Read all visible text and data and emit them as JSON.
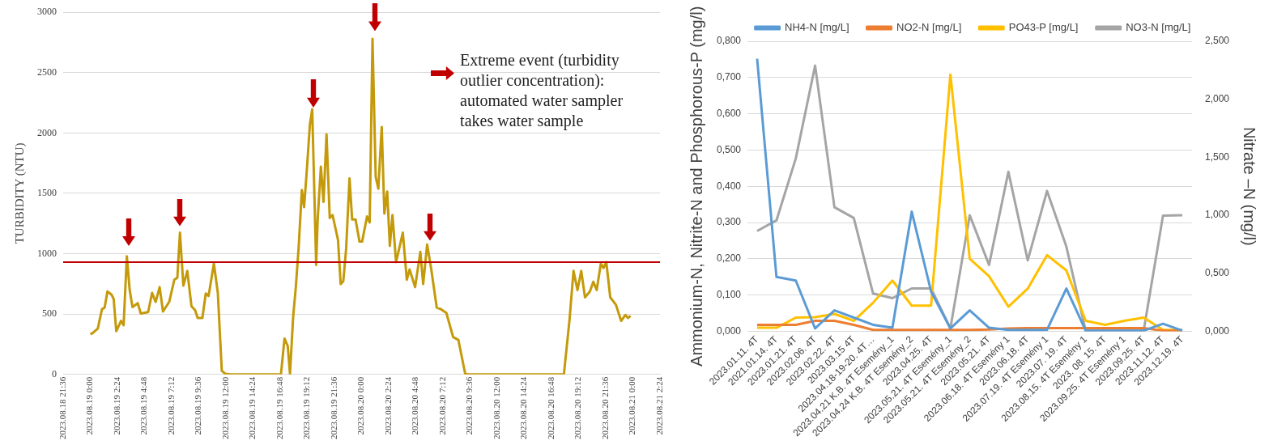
{
  "chart_data": [
    {
      "type": "line",
      "ylabel": "TURBIDITY (NTU)",
      "annotations": [
        "Extreme event (turbidity outlier concentration): automated water sampler takes water sample"
      ],
      "xlim": [
        "2023-08-18T21:36",
        "2023-08-21T02:24"
      ],
      "xticks": [
        {
          "value": "2023-08-18T21:36",
          "label": "2023.08.18 21:36"
        },
        {
          "value": "2023-08-19T00:00",
          "label": "2023.08.19 0:00"
        },
        {
          "value": "2023-08-19T02:24",
          "label": "2023.08.19 2:24"
        },
        {
          "value": "2023-08-19T04:48",
          "label": "2023.08.19 4:48"
        },
        {
          "value": "2023-08-19T07:12",
          "label": "2023.08.19 7:12"
        },
        {
          "value": "2023-08-19T09:36",
          "label": "2023.08.19 9:36"
        },
        {
          "value": "2023-08-19T12:00",
          "label": "2023.08.19 12:00"
        },
        {
          "value": "2023-08-19T14:24",
          "label": "2023.08.19 14:24"
        },
        {
          "value": "2023-08-19T16:48",
          "label": "2023.08.19 16:48"
        },
        {
          "value": "2023-08-19T19:12",
          "label": "2023.08.19 19:12"
        },
        {
          "value": "2023-08-19T21:36",
          "label": "2023.08.19 21:36"
        },
        {
          "value": "2023-08-20T00:00",
          "label": "2023.08.20 0:00"
        },
        {
          "value": "2023-08-20T02:24",
          "label": "2023.08.20 2:24"
        },
        {
          "value": "2023-08-20T04:48",
          "label": "2023.08.20 4:48"
        },
        {
          "value": "2023-08-20T07:12",
          "label": "2023.08.20 7:12"
        },
        {
          "value": "2023-08-20T09:36",
          "label": "2023.08.20 9:36"
        },
        {
          "value": "2023-08-20T12:00",
          "label": "2023.08.20 12:00"
        },
        {
          "value": "2023-08-20T14:24",
          "label": "2023.08.20 14:24"
        },
        {
          "value": "2023-08-20T16:48",
          "label": "2023.08.20 16:48"
        },
        {
          "value": "2023-08-20T19:12",
          "label": "2023.08.20 19:12"
        },
        {
          "value": "2023-08-20T21:36",
          "label": "2023.08.20 21:36"
        },
        {
          "value": "2023-08-21T00:00",
          "label": "2023.08.21 0:00"
        },
        {
          "value": "2023-08-21T02:24",
          "label": "2023.08.21 2:24"
        }
      ],
      "ylim": [
        0,
        3000
      ],
      "yticks": [
        0,
        500,
        1000,
        1500,
        2000,
        2500,
        3000
      ],
      "grid": "y",
      "ref_lines": [
        {
          "axis": "y",
          "value": 930,
          "color": "#c00000"
        }
      ],
      "series": [
        {
          "color": "#c49a0a",
          "x": [
            "2023-08-19T00:00",
            "2023-08-19T00:11",
            "2023-08-19T00:40",
            "2023-08-19T01:02",
            "2023-08-19T01:16",
            "2023-08-19T01:31",
            "2023-08-19T01:52",
            "2023-08-19T02:04",
            "2023-08-19T02:18",
            "2023-08-19T02:43",
            "2023-08-19T02:57",
            "2023-08-19T03:14",
            "2023-08-19T03:29",
            "2023-08-19T03:44",
            "2023-08-19T04:12",
            "2023-08-19T04:28",
            "2023-08-19T05:07",
            "2023-08-19T05:28",
            "2023-08-19T05:47",
            "2023-08-19T06:08",
            "2023-08-19T06:26",
            "2023-08-19T06:59",
            "2023-08-19T07:26",
            "2023-08-19T07:42",
            "2023-08-19T07:56",
            "2023-08-19T08:14",
            "2023-08-19T08:35",
            "2023-08-19T08:57",
            "2023-08-19T09:16",
            "2023-08-19T09:30",
            "2023-08-19T09:55",
            "2023-08-19T10:13",
            "2023-08-19T10:28",
            "2023-08-19T10:56",
            "2023-08-19T11:17",
            "2023-08-19T11:38",
            "2023-08-19T11:57",
            "2023-08-19T12:26",
            "2023-08-19T16:52",
            "2023-08-19T17:11",
            "2023-08-19T17:28",
            "2023-08-19T17:40",
            "2023-08-19T17:57",
            "2023-08-19T18:11",
            "2023-08-19T18:26",
            "2023-08-19T18:43",
            "2023-08-19T18:55",
            "2023-08-19T19:09",
            "2023-08-19T19:26",
            "2023-08-19T19:38",
            "2023-08-19T19:59",
            "2023-08-19T20:07",
            "2023-08-19T20:24",
            "2023-08-19T20:38",
            "2023-08-19T20:54",
            "2023-08-19T21:11",
            "2023-08-19T21:26",
            "2023-08-19T21:55",
            "2023-08-19T22:09",
            "2023-08-19T22:23",
            "2023-08-19T22:38",
            "2023-08-19T22:56",
            "2023-08-19T23:10",
            "2023-08-19T23:28",
            "2023-08-19T23:49",
            "2023-08-20T00:03",
            "2023-08-20T00:29",
            "2023-08-20T00:43",
            "2023-08-20T00:58",
            "2023-08-20T01:15",
            "2023-08-20T01:29",
            "2023-08-20T01:47",
            "2023-08-20T02:01",
            "2023-08-20T02:16",
            "2023-08-20T02:30",
            "2023-08-20T02:44",
            "2023-08-20T03:03",
            "2023-08-20T03:39",
            "2023-08-20T04:00",
            "2023-08-20T04:15",
            "2023-08-20T04:44",
            "2023-08-20T05:12",
            "2023-08-20T05:27",
            "2023-08-20T05:48",
            "2023-08-20T06:10",
            "2023-08-20T06:39",
            "2023-08-20T07:00",
            "2023-08-20T07:30",
            "2023-08-20T08:06",
            "2023-08-20T08:34",
            "2023-08-20T09:10",
            "2023-08-20T09:24",
            "2023-08-20T17:54",
            "2023-08-20T18:24",
            "2023-08-20T18:45",
            "2023-08-20T19:06",
            "2023-08-20T19:26",
            "2023-08-20T19:46",
            "2023-08-20T20:12",
            "2023-08-20T20:30",
            "2023-08-20T20:48",
            "2023-08-20T21:10",
            "2023-08-20T21:24",
            "2023-08-20T21:39",
            "2023-08-20T22:00",
            "2023-08-20T22:30",
            "2023-08-20T22:58",
            "2023-08-20T23:20",
            "2023-08-20T23:34",
            "2023-08-20T23:48"
          ],
          "values": [
            334,
            340,
            380,
            540,
            553,
            687,
            662,
            625,
            358,
            443,
            407,
            979,
            700,
            558,
            590,
            504,
            516,
            675,
            600,
            723,
            521,
            601,
            784,
            801,
            1174,
            735,
            857,
            565,
            533,
            467,
            467,
            670,
            650,
            918,
            675,
            29,
            5,
            0,
            0,
            297,
            236,
            5,
            480,
            723,
            1052,
            1527,
            1386,
            1685,
            2075,
            2196,
            906,
            1283,
            1721,
            1429,
            1989,
            1295,
            1320,
            1113,
            748,
            772,
            1040,
            1624,
            1283,
            1283,
            1100,
            1100,
            1308,
            1259,
            2780,
            1636,
            1539,
            2050,
            1332,
            1515,
            1064,
            1320,
            930,
            1174,
            784,
            869,
            723,
            1015,
            748,
            1076,
            869,
            553,
            541,
            509,
            309,
            285,
            5,
            0,
            0,
            455,
            857,
            699,
            857,
            638,
            687,
            767,
            699,
            918,
            881,
            930,
            638,
            577,
            443,
            492,
            467,
            485
          ]
        }
      ]
    },
    {
      "type": "line",
      "ylabel": "Ammonium-N, Nitrite-N and Phosphorous-P (mg/l)",
      "y2label": "Nitrate –N (mg/l)",
      "legend": "top",
      "grid": "y",
      "categories": [
        "2023.01.11. 4T",
        "2021.01.14. 4T",
        "2023.01.21. 4T",
        "2023.02.06. 4T",
        "2023.02.22. 4T",
        "2023.03.15 4T",
        "2023.04.18-19-20. 4T…",
        "2023.04.21 K.B. 4T Esemény_1",
        "2023.04.24 K.B. 4T Esemény_2",
        "2023.04.25. 4T",
        "2023.05.21. 4T Esemény_1",
        "2023.05.21. 4T Esemény_2",
        "2023.05.21. 4T",
        "2023.06.18. 4T Esemény 1",
        "2023.06.18. 4T",
        "2023.07.19. 4T Esemény 1",
        "2023.07. 19. 4T",
        "2023.08.15. 4T Esemény 1",
        "2023. 08. 15. 4T",
        "2023.09.25. 4T Esemény 1",
        "2023.09.25. 4T",
        "2023.11.12. 4T",
        "2023.12.19. 4T"
      ],
      "ylim": [
        0,
        0.8
      ],
      "yticks": [
        {
          "value": 0,
          "label": "0,000"
        },
        {
          "value": 0.1,
          "label": "0,100"
        },
        {
          "value": 0.2,
          "label": "0,200"
        },
        {
          "value": 0.3,
          "label": "0,300"
        },
        {
          "value": 0.4,
          "label": "0,400"
        },
        {
          "value": 0.5,
          "label": "0,500"
        },
        {
          "value": 0.6,
          "label": "0,600"
        },
        {
          "value": 0.7,
          "label": "0,700"
        },
        {
          "value": 0.8,
          "label": "0,800"
        }
      ],
      "y2lim": [
        0,
        2.5
      ],
      "y2ticks": [
        {
          "value": 0,
          "label": "0,000"
        },
        {
          "value": 0.5,
          "label": "0,500"
        },
        {
          "value": 1,
          "label": "1,000"
        },
        {
          "value": 1.5,
          "label": "1,500"
        },
        {
          "value": 2,
          "label": "2,000"
        },
        {
          "value": 2.5,
          "label": "2,500"
        }
      ],
      "series": [
        {
          "name": "NH4-N [mg/L]",
          "color": "#5b9bd5",
          "values": [
            0.752,
            0.15,
            0.14,
            0.008,
            0.058,
            0.038,
            0.018,
            0.01,
            0.33,
            0.11,
            0.008,
            0.058,
            0.01,
            0.004,
            0.004,
            0.004,
            0.118,
            0.002,
            0.002,
            0.002,
            0.002,
            0.021,
            0.002
          ]
        },
        {
          "name": "NO2-N [mg/L]",
          "color": "#ed7d31",
          "values": [
            0.018,
            0.018,
            0.018,
            0.029,
            0.029,
            0.018,
            0.004,
            0.004,
            0.004,
            0.004,
            0.004,
            0.004,
            0.005,
            0.008,
            0.009,
            0.009,
            0.009,
            0.009,
            0.009,
            0.009,
            0.009,
            0.002,
            0.002
          ]
        },
        {
          "name": "PO43-P [mg/L]",
          "color": "#ffc000",
          "values": [
            0.01,
            0.01,
            0.038,
            0.039,
            0.048,
            0.029,
            0.079,
            0.14,
            0.071,
            0.071,
            0.708,
            0.2,
            0.152,
            0.068,
            0.118,
            0.21,
            0.168,
            0.029,
            0.018,
            0.029,
            0.038,
            0.004,
            0.004
          ]
        },
        {
          "name": "NO3-N [mg/L]",
          "color": "#a5a5a5",
          "axis": "y2",
          "values": [
            0.865,
            0.956,
            1.49,
            2.29,
            1.07,
            0.977,
            0.326,
            0.286,
            0.37,
            0.37,
            0.026,
            1.0,
            0.573,
            1.375,
            0.612,
            1.21,
            0.73,
            0.005,
            0.005,
            0.005,
            0.005,
            0.997,
            1.0
          ]
        }
      ]
    }
  ]
}
